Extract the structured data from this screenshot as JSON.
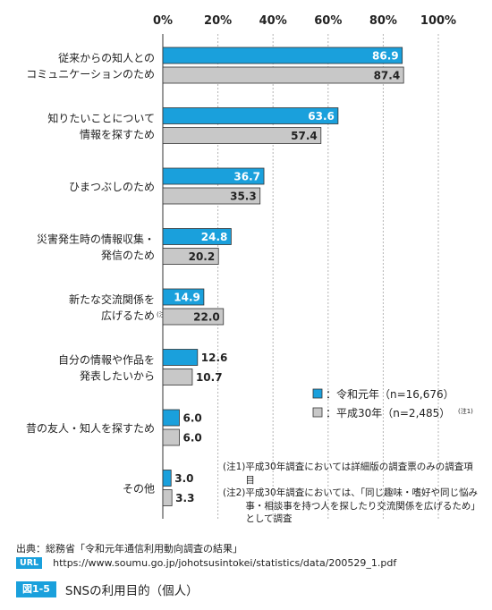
{
  "chart_data": {
    "type": "bar",
    "orientation": "horizontal",
    "xlim": [
      0,
      100
    ],
    "x_ticks": [
      "0%",
      "20%",
      "40%",
      "60%",
      "80%",
      "100%"
    ],
    "grid": true,
    "legend_position": "bottom-right",
    "categories": [
      [
        "従来からの知人との",
        "コミュニケーションのため"
      ],
      [
        "知りたいことについて",
        "情報を探すため"
      ],
      [
        "ひまつぶしのため"
      ],
      [
        "災害発生時の情報収集・",
        "発信のため"
      ],
      [
        "新たな交流関係を",
        "広げるため"
      ],
      [
        "自分の情報や作品を",
        "発表したいから"
      ],
      [
        "昔の友人・知人を探すため"
      ],
      [
        "その他"
      ]
    ],
    "category_notes": [
      "",
      "",
      "",
      "",
      "(注2)",
      "",
      "",
      ""
    ],
    "series": [
      {
        "name": "令和元年（n=16,676）",
        "color": "#1aa0dc",
        "values": [
          86.9,
          63.6,
          36.7,
          24.8,
          14.9,
          12.6,
          6.0,
          3.0
        ]
      },
      {
        "name": "平成30年（n=2,485）",
        "name_note": "(注1)",
        "color": "#c8c8c8",
        "values": [
          87.4,
          57.4,
          35.3,
          20.2,
          22.0,
          10.7,
          6.0,
          3.3
        ]
      }
    ]
  },
  "notes": [
    {
      "key": "(注1)",
      "text": "平成30年調査においては詳細版の調査票のみの調査項目"
    },
    {
      "key": "(注2)",
      "text": "平成30年調査においては、「同じ趣味・嗜好や同じ悩み事・相談事を持つ人を探したり交流関係を広げるため」として調査"
    }
  ],
  "source": {
    "label": "出典：総務省「令和元年通信利用動向調査の結果」",
    "url_badge": "URL",
    "url": "https://www.soumu.go.jp/johotsusintokei/statistics/data/200529_1.pdf"
  },
  "figure": {
    "number": "図1-5",
    "title": "SNSの利用目的（個人）"
  }
}
